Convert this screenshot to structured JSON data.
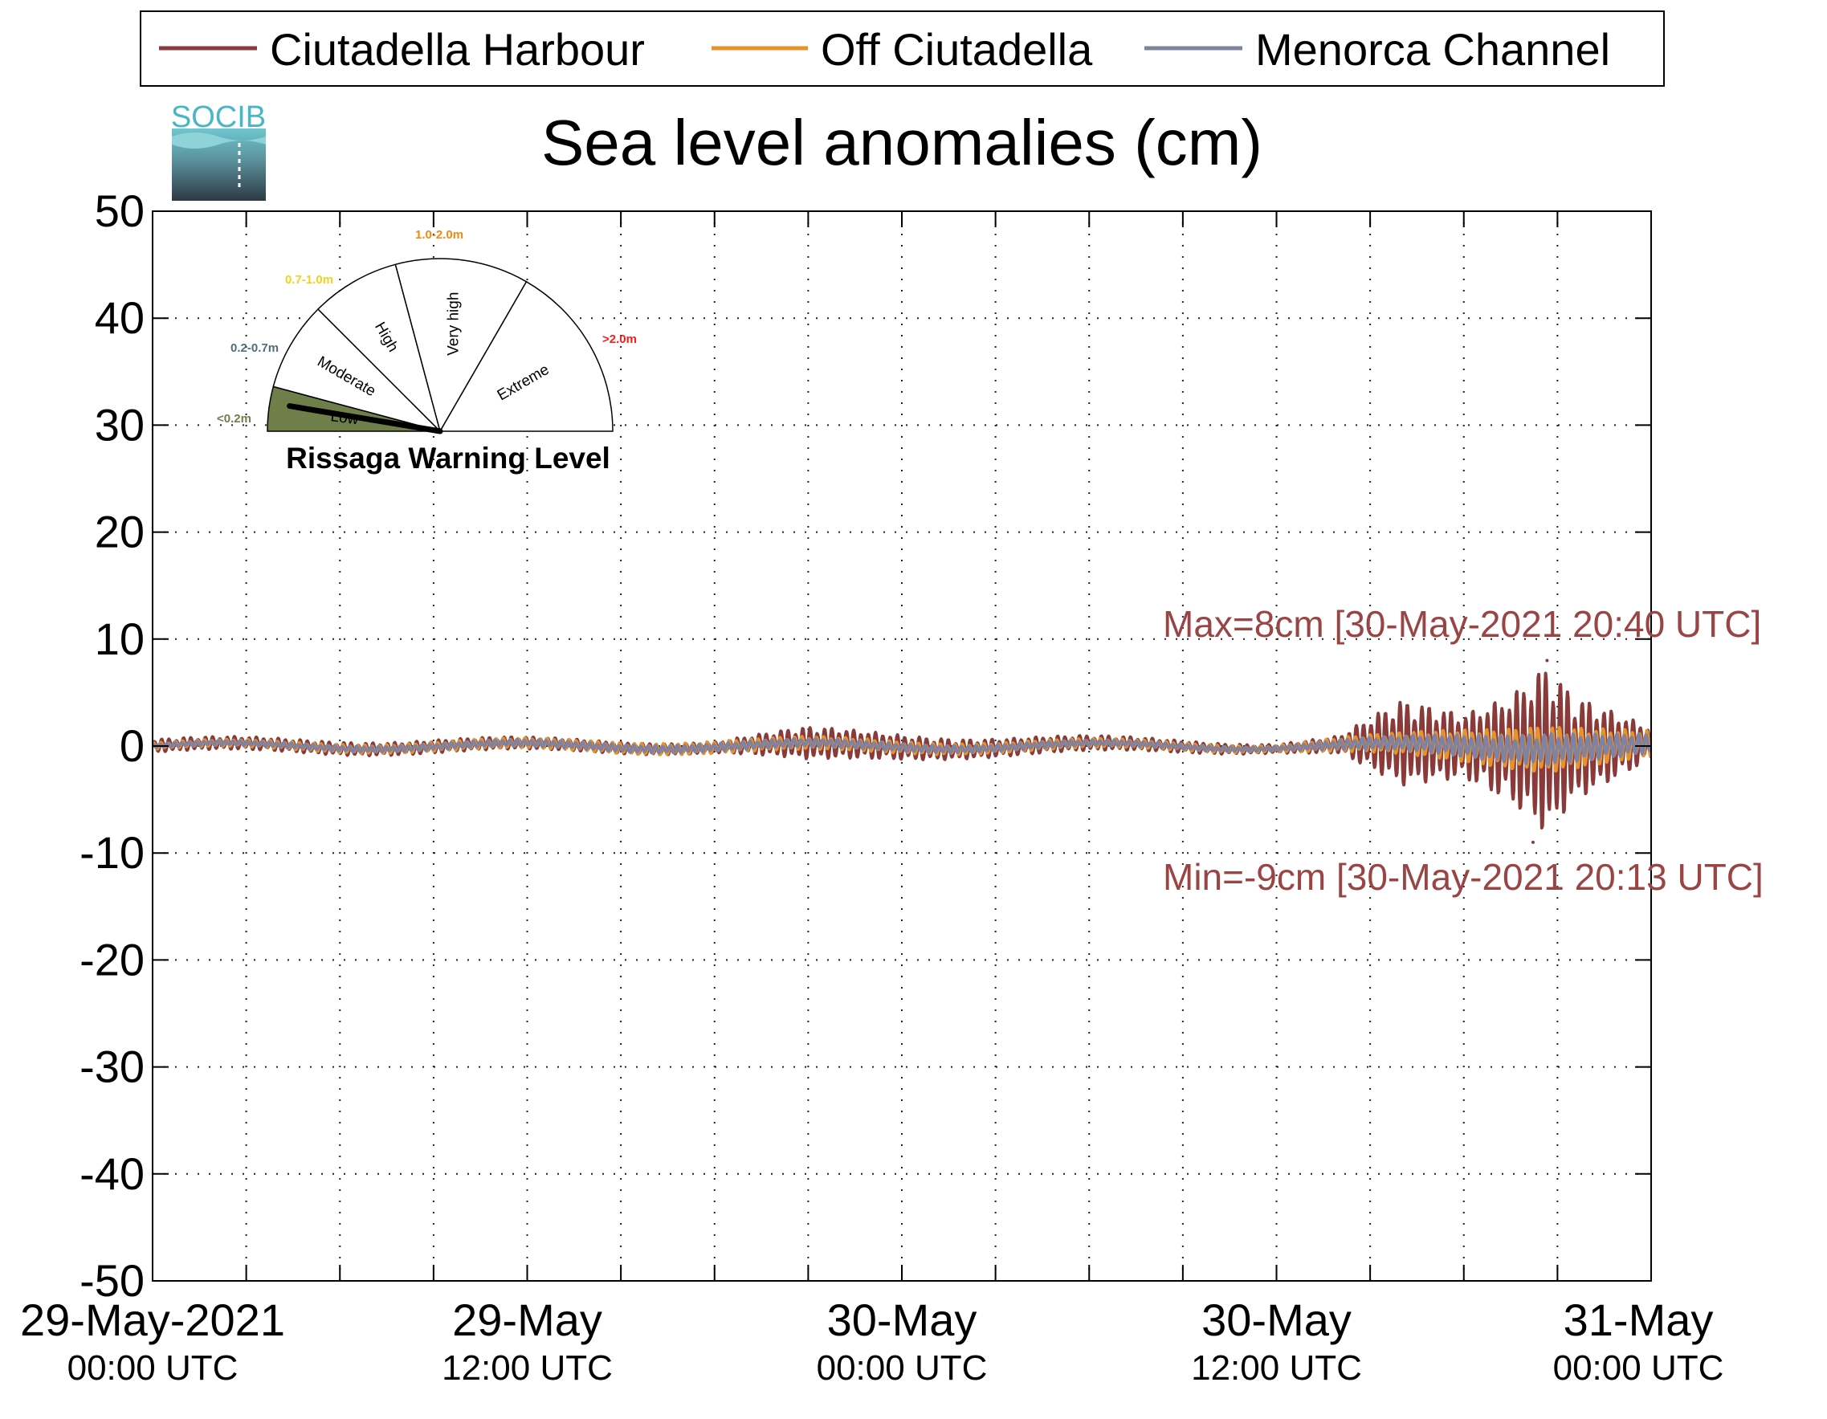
{
  "chart_data": {
    "type": "line",
    "title": "Sea level anomalies (cm)",
    "xlabel": "",
    "ylabel": "",
    "ylim": [
      -50,
      50
    ],
    "yticks": [
      -50,
      -40,
      -30,
      -20,
      -10,
      0,
      10,
      20,
      30,
      40,
      50
    ],
    "xlim": [
      "2021-05-29 00:00",
      "2021-05-31 00:00"
    ],
    "x_minor_tick_hours": 3,
    "xtick_labels": [
      {
        "time": "2021-05-29 00:00",
        "line1": "29-May-2021",
        "line2": "00:00 UTC"
      },
      {
        "time": "2021-05-29 12:00",
        "line1": "29-May",
        "line2": "12:00 UTC"
      },
      {
        "time": "2021-05-30 00:00",
        "line1": "30-May",
        "line2": "00:00 UTC"
      },
      {
        "time": "2021-05-30 12:00",
        "line1": "30-May",
        "line2": "12:00 UTC"
      },
      {
        "time": "2021-05-31 00:00",
        "line1": "31-May",
        "line2": "00:00 UTC"
      }
    ],
    "grid": true,
    "legend_position": "top",
    "series": [
      {
        "name": "Ciutadella Harbour",
        "color": "#8b3a3a",
        "envelope": [
          {
            "time": "2021-05-29 00:00",
            "amp": 0.6
          },
          {
            "time": "2021-05-29 09:00",
            "amp": 0.6
          },
          {
            "time": "2021-05-29 18:00",
            "amp": 0.5
          },
          {
            "time": "2021-05-29 21:00",
            "amp": 1.5
          },
          {
            "time": "2021-05-30 02:00",
            "amp": 0.9
          },
          {
            "time": "2021-05-30 12:00",
            "amp": 0.4
          },
          {
            "time": "2021-05-30 14:00",
            "amp": 0.8
          },
          {
            "time": "2021-05-30 16:00",
            "amp": 4.0
          },
          {
            "time": "2021-05-30 18:00",
            "amp": 3.0
          },
          {
            "time": "2021-05-30 19:30",
            "amp": 5.0
          },
          {
            "time": "2021-05-30 20:40",
            "amp": 8.0
          },
          {
            "time": "2021-05-30 21:30",
            "amp": 5.0
          },
          {
            "time": "2021-05-31 00:00",
            "amp": 1.5
          }
        ],
        "max": {
          "value": 8,
          "time": "2021-05-30 20:40"
        },
        "min": {
          "value": -9,
          "time": "2021-05-30 20:13"
        }
      },
      {
        "name": "Off Ciutadella",
        "color": "#e8932a",
        "envelope": [
          {
            "time": "2021-05-29 00:00",
            "amp": 0.3
          },
          {
            "time": "2021-05-29 21:00",
            "amp": 0.6
          },
          {
            "time": "2021-05-30 12:00",
            "amp": 0.3
          },
          {
            "time": "2021-05-30 16:00",
            "amp": 1.0
          },
          {
            "time": "2021-05-30 20:40",
            "amp": 2.2
          },
          {
            "time": "2021-05-31 00:00",
            "amp": 1.2
          }
        ]
      },
      {
        "name": "Menorca Channel",
        "color": "#7f82a0",
        "envelope": [
          {
            "time": "2021-05-29 00:00",
            "amp": 0.2
          },
          {
            "time": "2021-05-29 21:00",
            "amp": 0.4
          },
          {
            "time": "2021-05-30 12:00",
            "amp": 0.2
          },
          {
            "time": "2021-05-30 16:00",
            "amp": 0.7
          },
          {
            "time": "2021-05-30 20:40",
            "amp": 1.5
          },
          {
            "time": "2021-05-31 00:00",
            "amp": 0.9
          }
        ]
      }
    ],
    "annotations": {
      "max_text": "Max=8cm [30-May-2021 20:40 UTC]",
      "min_text": "Min=-9cm [30-May-2021 20:13 UTC]",
      "color": "#9a4545"
    }
  },
  "logo": {
    "text": "SOCIB"
  },
  "gauge": {
    "title": "Rissaga Warning Level",
    "current_level": "Low",
    "levels": [
      {
        "name": "Low",
        "range": "<0.2m",
        "color": "#6e7f4a"
      },
      {
        "name": "Moderate",
        "range": "0.2-0.7m",
        "color": "#4f6f78"
      },
      {
        "name": "High",
        "range": "0.7-1.0m",
        "color": "#f2d21b"
      },
      {
        "name": "Very high",
        "range": "1.0-2.0m",
        "color": "#f28a12"
      },
      {
        "name": "Extreme",
        "range": ">2.0m",
        "color": "#ff1a1a"
      }
    ]
  }
}
